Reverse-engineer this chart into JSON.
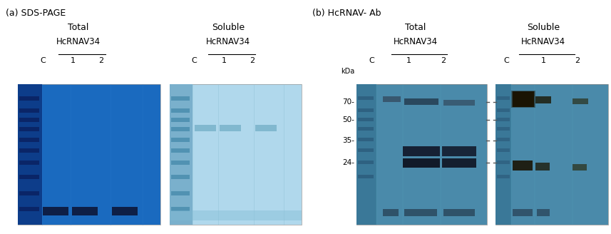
{
  "fig_width": 8.57,
  "fig_height": 3.28,
  "dpi": 100,
  "panel_a_label": "(a) SDS-PAGE",
  "panel_b_label": "(b) HcRNAV- Ab",
  "total_label": "Total",
  "soluble_label": "Soluble",
  "hcrnav34_label": "HcRNAV34",
  "lane_labels": [
    "C",
    "1",
    "2"
  ],
  "kda_labels": [
    "70",
    "50",
    "35",
    "24"
  ],
  "kda_label": "kDa",
  "a_total_bg": "#1a6abf",
  "a_total_dark_lane": "#0d3d8a",
  "a_soluble_bg": "#b0d8ec",
  "a_soluble_dark_lane": "#7ab0cc",
  "b_total_bg": "#4a8aaa",
  "b_soluble_bg": "#4a8aaa",
  "white_bg": "#ffffff"
}
